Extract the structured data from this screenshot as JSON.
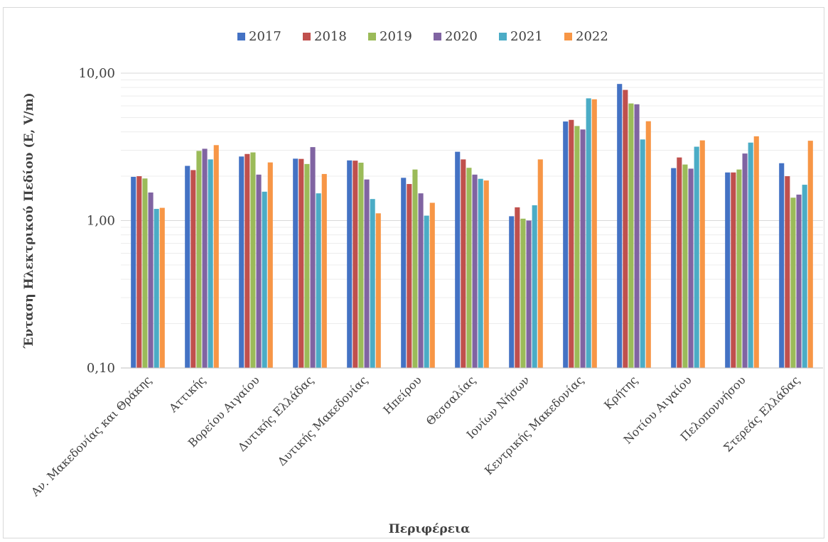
{
  "chart_data": {
    "type": "bar",
    "title": "",
    "xlabel": "Περιφέρεια",
    "ylabel": "Ένταση Ηλεκτρικού Πεδίου (E, V/m)",
    "yscale": "log",
    "ylim": [
      0.1,
      10
    ],
    "yticks": [
      0.1,
      1,
      10
    ],
    "ytick_labels": [
      "0,10",
      "1,00",
      "10,00"
    ],
    "grid": "horizontal major and minor",
    "legend_position": "top",
    "categories": [
      "Αν. Μακεδονίας και Θράκης",
      "Αττικής",
      "Βορείου Αιγαίου",
      "Δυτικής Ελλάδας",
      "Δυτικής Μακεδονίας",
      "Ηπείρου",
      "Θεσσαλίας",
      "Ιονίων Νήσων",
      "Κεντρικής Μακεδονίας",
      "Κρήτης",
      "Νοτίου Αιγαίου",
      "Πελοποννήσου",
      "Στερεάς Ελλάδας"
    ],
    "series": [
      {
        "name": "2017",
        "color": "#4472c4",
        "values": [
          1.98,
          2.35,
          2.72,
          2.63,
          2.56,
          1.95,
          2.93,
          1.07,
          4.7,
          8.45,
          2.27,
          2.12,
          2.45
        ]
      },
      {
        "name": "2018",
        "color": "#c0504d",
        "values": [
          2.0,
          2.2,
          2.83,
          2.62,
          2.55,
          1.77,
          2.6,
          1.23,
          4.82,
          7.7,
          2.68,
          2.12,
          2.0
        ]
      },
      {
        "name": "2019",
        "color": "#9bbb59",
        "values": [
          1.93,
          2.97,
          2.9,
          2.42,
          2.47,
          2.22,
          2.28,
          1.03,
          4.38,
          6.23,
          2.4,
          2.22,
          1.43
        ]
      },
      {
        "name": "2020",
        "color": "#8064a2",
        "values": [
          1.55,
          3.07,
          2.05,
          3.15,
          1.9,
          1.53,
          2.05,
          1.0,
          4.15,
          6.15,
          2.25,
          2.85,
          1.5
        ]
      },
      {
        "name": "2021",
        "color": "#4bacc6",
        "values": [
          1.2,
          2.6,
          1.57,
          1.53,
          1.4,
          1.08,
          1.92,
          1.27,
          6.75,
          3.55,
          3.17,
          3.38,
          1.75
        ]
      },
      {
        "name": "2022",
        "color": "#f79646",
        "values": [
          1.22,
          3.25,
          2.48,
          2.07,
          1.12,
          1.32,
          1.87,
          2.6,
          6.65,
          4.72,
          3.5,
          3.73,
          3.48
        ]
      }
    ]
  }
}
